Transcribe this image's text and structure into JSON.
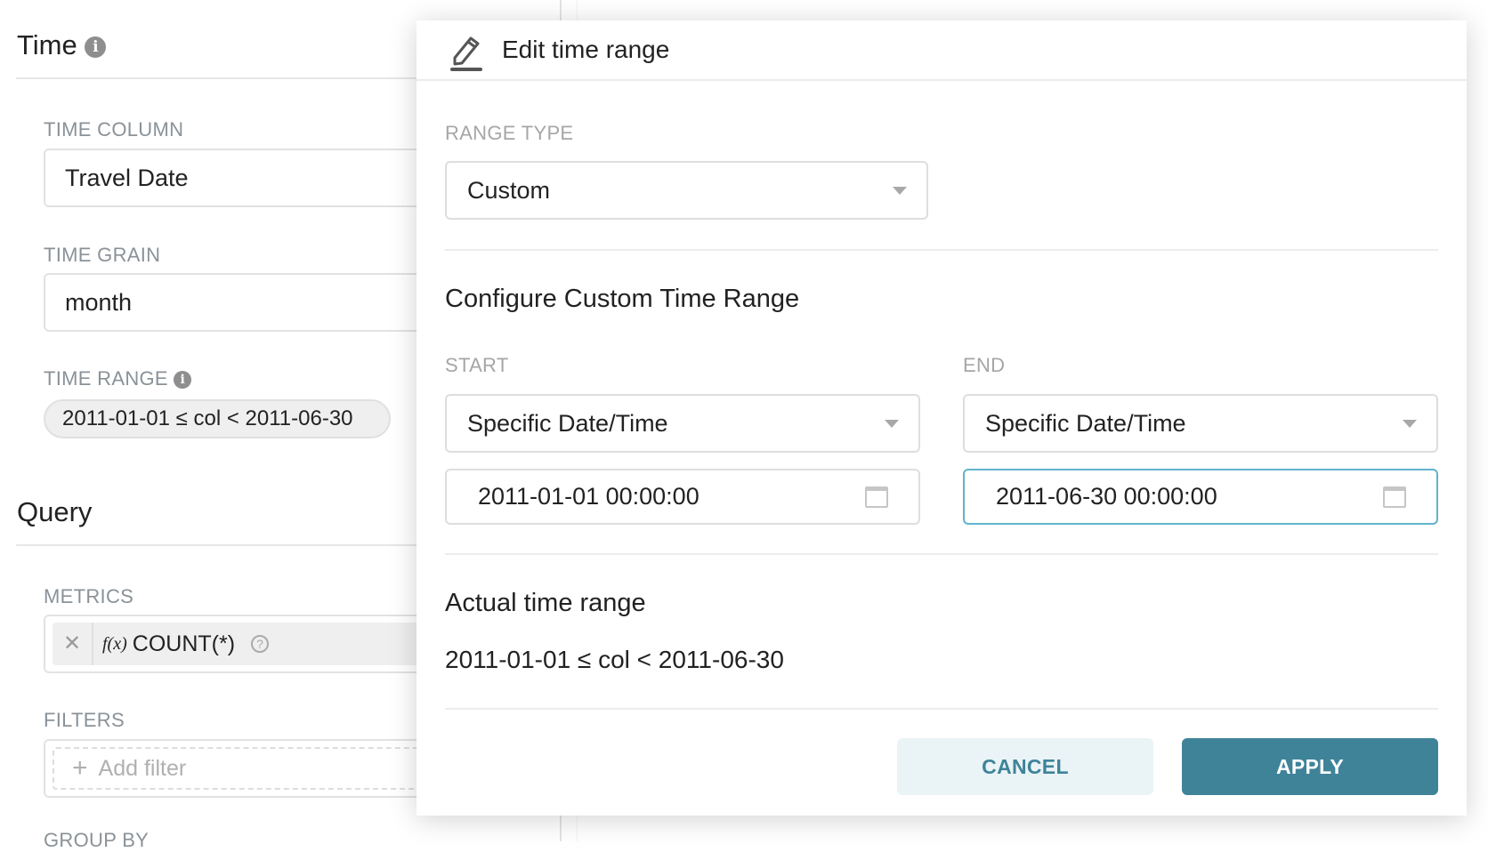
{
  "panel": {
    "time_title": "Time",
    "time_column_label": "TIME COLUMN",
    "time_column_value": "Travel Date",
    "time_grain_label": "TIME GRAIN",
    "time_grain_value": "month",
    "time_range_label": "TIME RANGE",
    "time_range_value": "2011-01-01 ≤ col < 2011-06-30",
    "query_title": "Query",
    "metrics_label": "METRICS",
    "metric_fx": "f(x)",
    "metric_value": "COUNT(*)",
    "filters_label": "FILTERS",
    "add_filter": "Add filter",
    "group_by_label": "GROUP BY"
  },
  "modal": {
    "title": "Edit time range",
    "range_type_label": "RANGE TYPE",
    "range_type_value": "Custom",
    "configure_title": "Configure Custom Time Range",
    "start_label": "START",
    "end_label": "END",
    "start_mode": "Specific Date/Time",
    "end_mode": "Specific Date/Time",
    "start_value": "2011-01-01 00:00:00",
    "end_value": "2011-06-30 00:00:00",
    "actual_title": "Actual time range",
    "actual_value": "2011-01-01 ≤ col < 2011-06-30",
    "cancel": "CANCEL",
    "apply": "APPLY"
  },
  "colors": {
    "primary": "#3f8399",
    "cancel_bg": "#eaf4f6",
    "focus_border": "#5fb4cc"
  }
}
